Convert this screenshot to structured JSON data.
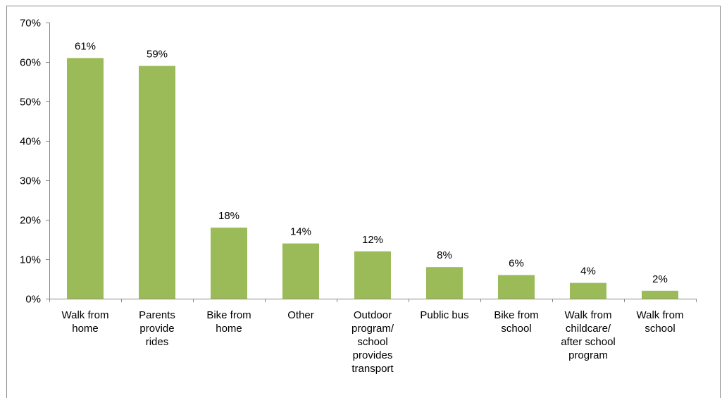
{
  "chart_data": {
    "type": "bar",
    "title": "",
    "xlabel": "",
    "ylabel": "",
    "ylim": [
      0,
      70
    ],
    "yticks": [
      "0%",
      "10%",
      "20%",
      "30%",
      "40%",
      "50%",
      "60%",
      "70%"
    ],
    "ytick_values": [
      0,
      10,
      20,
      30,
      40,
      50,
      60,
      70
    ],
    "grid": false,
    "legend": "none",
    "bar_color": "#9BBB59",
    "categories": [
      [
        "Walk from",
        "home"
      ],
      [
        "Parents",
        "provide",
        "rides"
      ],
      [
        "Bike from",
        "home"
      ],
      [
        "Other"
      ],
      [
        "Outdoor",
        "program/",
        "school",
        "provides",
        "transport"
      ],
      [
        "Public bus"
      ],
      [
        "Bike from",
        "school"
      ],
      [
        "Walk from",
        "childcare/",
        "after school",
        "program"
      ],
      [
        "Walk from",
        "school"
      ]
    ],
    "values": [
      61,
      59,
      18,
      14,
      12,
      8,
      6,
      4,
      2
    ],
    "data_labels": [
      "61%",
      "59%",
      "18%",
      "14%",
      "12%",
      "8%",
      "6%",
      "4%",
      "2%"
    ]
  }
}
